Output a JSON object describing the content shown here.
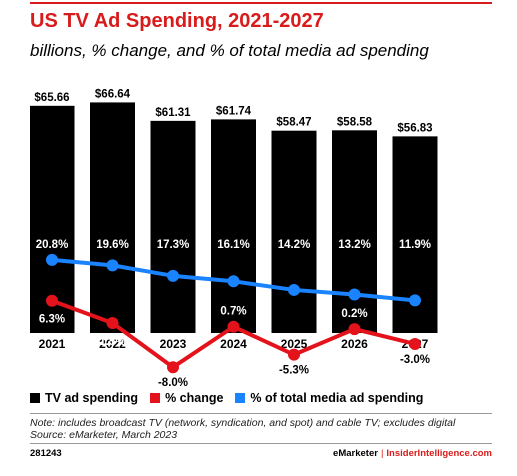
{
  "title": "US TV Ad Spending, 2021-2027",
  "subtitle": "billions, % change, and % of total media ad spending",
  "colors": {
    "accent": "#d81b1b",
    "bar": "#000000",
    "change_line": "#e3121b",
    "share_line": "#1a83ff"
  },
  "chart_data": {
    "type": "bar",
    "categories": [
      "2021",
      "2022",
      "2023",
      "2024",
      "2025",
      "2026",
      "2027"
    ],
    "series": [
      {
        "name": "TV ad spending",
        "type": "bar",
        "values": [
          65.66,
          66.64,
          61.31,
          61.74,
          58.47,
          58.58,
          56.83
        ],
        "labels": [
          "$65.66",
          "$66.64",
          "$61.31",
          "$61.74",
          "$58.47",
          "$58.58",
          "$56.83"
        ]
      },
      {
        "name": "% change",
        "type": "line",
        "values": [
          6.3,
          1.5,
          -8.0,
          0.7,
          -5.3,
          0.2,
          -3.0
        ],
        "labels": [
          "6.3%",
          "1.5%",
          "-8.0%",
          "0.7%",
          "-5.3%",
          "0.2%",
          "-3.0%"
        ]
      },
      {
        "name": "% of total media ad spending",
        "type": "line",
        "values": [
          20.8,
          19.6,
          17.3,
          16.1,
          14.2,
          13.2,
          11.9
        ],
        "labels": [
          "20.8%",
          "19.6%",
          "17.3%",
          "16.1%",
          "14.2%",
          "13.2%",
          "11.9%"
        ]
      }
    ],
    "legend_position": "bottom-left",
    "grid": false
  },
  "legend": {
    "items": [
      "TV ad spending",
      "% change",
      "% of total media ad spending"
    ]
  },
  "note": {
    "line1": "Note: includes broadcast TV (network, syndication, and spot) and cable TV; excludes digital",
    "line2": "Source: eMarketer, March 2023"
  },
  "footer": {
    "chart_id": "281243",
    "brand": "eMarketer",
    "separator": "|",
    "site": "InsiderIntelligence.com"
  }
}
